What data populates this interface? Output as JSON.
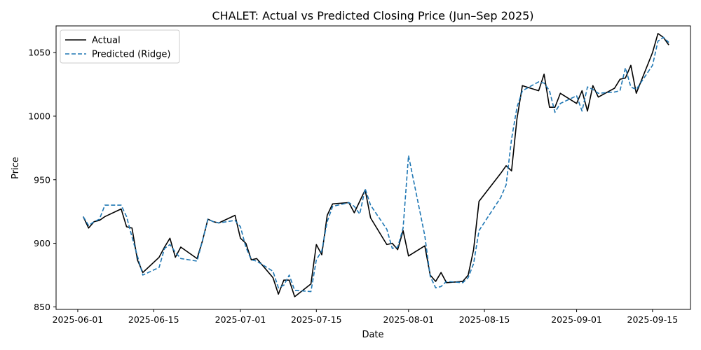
{
  "chart_data": {
    "type": "line",
    "title": "CHALET: Actual vs Predicted Closing Price (Jun–Sep 2025)",
    "xlabel": "Date",
    "ylabel": "Price",
    "x_tick_labels": [
      "2025-06-01",
      "2025-06-15",
      "2025-07-01",
      "2025-07-15",
      "2025-08-01",
      "2025-08-15",
      "2025-09-01",
      "2025-09-15"
    ],
    "y_ticks": [
      850,
      900,
      950,
      1000,
      1050
    ],
    "xlim": [
      "2025-05-28",
      "2025-09-22"
    ],
    "ylim": [
      848,
      1071
    ],
    "grid": false,
    "legend_position": "top-left",
    "series": [
      {
        "name": "Actual",
        "color": "#000000",
        "style": "solid",
        "points": [
          [
            "2025-06-02",
            921
          ],
          [
            "2025-06-03",
            912
          ],
          [
            "2025-06-04",
            917
          ],
          [
            "2025-06-05",
            918
          ],
          [
            "2025-06-06",
            921
          ],
          [
            "2025-06-09",
            927
          ],
          [
            "2025-06-10",
            913
          ],
          [
            "2025-06-11",
            912
          ],
          [
            "2025-06-12",
            887
          ],
          [
            "2025-06-13",
            877
          ],
          [
            "2025-06-16",
            889
          ],
          [
            "2025-06-17",
            897
          ],
          [
            "2025-06-18",
            904
          ],
          [
            "2025-06-19",
            889
          ],
          [
            "2025-06-20",
            897
          ],
          [
            "2025-06-23",
            888
          ],
          [
            "2025-06-24",
            902
          ],
          [
            "2025-06-25",
            919
          ],
          [
            "2025-06-26",
            917
          ],
          [
            "2025-06-27",
            916
          ],
          [
            "2025-06-30",
            922
          ],
          [
            "2025-07-01",
            904
          ],
          [
            "2025-07-02",
            900
          ],
          [
            "2025-07-03",
            887
          ],
          [
            "2025-07-04",
            888
          ],
          [
            "2025-07-07",
            873
          ],
          [
            "2025-07-08",
            860
          ],
          [
            "2025-07-09",
            871
          ],
          [
            "2025-07-10",
            871
          ],
          [
            "2025-07-11",
            858
          ],
          [
            "2025-07-14",
            868
          ],
          [
            "2025-07-15",
            899
          ],
          [
            "2025-07-16",
            891
          ],
          [
            "2025-07-17",
            922
          ],
          [
            "2025-07-18",
            931
          ],
          [
            "2025-07-21",
            932
          ],
          [
            "2025-07-22",
            924
          ],
          [
            "2025-07-23",
            933
          ],
          [
            "2025-07-24",
            942
          ],
          [
            "2025-07-25",
            920
          ],
          [
            "2025-07-28",
            899
          ],
          [
            "2025-07-29",
            900
          ],
          [
            "2025-07-30",
            895
          ],
          [
            "2025-07-31",
            910
          ],
          [
            "2025-08-01",
            890
          ],
          [
            "2025-08-04",
            898
          ],
          [
            "2025-08-05",
            875
          ],
          [
            "2025-08-06",
            870
          ],
          [
            "2025-08-07",
            877
          ],
          [
            "2025-08-08",
            869
          ],
          [
            "2025-08-11",
            870
          ],
          [
            "2025-08-12",
            875
          ],
          [
            "2025-08-13",
            895
          ],
          [
            "2025-08-14",
            933
          ],
          [
            "2025-08-18",
            955
          ],
          [
            "2025-08-19",
            961
          ],
          [
            "2025-08-20",
            957
          ],
          [
            "2025-08-21",
            998
          ],
          [
            "2025-08-22",
            1024
          ],
          [
            "2025-08-25",
            1020
          ],
          [
            "2025-08-26",
            1033
          ],
          [
            "2025-08-27",
            1007
          ],
          [
            "2025-08-28",
            1007
          ],
          [
            "2025-08-29",
            1018
          ],
          [
            "2025-09-01",
            1010
          ],
          [
            "2025-09-02",
            1020
          ],
          [
            "2025-09-03",
            1004
          ],
          [
            "2025-09-04",
            1024
          ],
          [
            "2025-09-05",
            1015
          ],
          [
            "2025-09-08",
            1022
          ],
          [
            "2025-09-09",
            1029
          ],
          [
            "2025-09-10",
            1030
          ],
          [
            "2025-09-11",
            1040
          ],
          [
            "2025-09-12",
            1018
          ],
          [
            "2025-09-15",
            1050
          ],
          [
            "2025-09-16",
            1065
          ],
          [
            "2025-09-17",
            1062
          ],
          [
            "2025-09-18",
            1056
          ]
        ]
      },
      {
        "name": "Predicted (Ridge)",
        "color": "#1f77b4",
        "style": "dashed",
        "points": [
          [
            "2025-06-02",
            921
          ],
          [
            "2025-06-03",
            914
          ],
          [
            "2025-06-04",
            917
          ],
          [
            "2025-06-05",
            919
          ],
          [
            "2025-06-06",
            930
          ],
          [
            "2025-06-09",
            930
          ],
          [
            "2025-06-10",
            921
          ],
          [
            "2025-06-11",
            905
          ],
          [
            "2025-06-12",
            890
          ],
          [
            "2025-06-13",
            875
          ],
          [
            "2025-06-16",
            881
          ],
          [
            "2025-06-17",
            896
          ],
          [
            "2025-06-18",
            899
          ],
          [
            "2025-06-19",
            893
          ],
          [
            "2025-06-20",
            888
          ],
          [
            "2025-06-23",
            886
          ],
          [
            "2025-06-24",
            902
          ],
          [
            "2025-06-25",
            919
          ],
          [
            "2025-06-26",
            917
          ],
          [
            "2025-06-27",
            916
          ],
          [
            "2025-06-30",
            918
          ],
          [
            "2025-07-01",
            913
          ],
          [
            "2025-07-02",
            897
          ],
          [
            "2025-07-03",
            887
          ],
          [
            "2025-07-04",
            886
          ],
          [
            "2025-07-07",
            878
          ],
          [
            "2025-07-08",
            865
          ],
          [
            "2025-07-09",
            867
          ],
          [
            "2025-07-10",
            875
          ],
          [
            "2025-07-11",
            863
          ],
          [
            "2025-07-14",
            862
          ],
          [
            "2025-07-15",
            887
          ],
          [
            "2025-07-16",
            894
          ],
          [
            "2025-07-17",
            917
          ],
          [
            "2025-07-18",
            929
          ],
          [
            "2025-07-21",
            932
          ],
          [
            "2025-07-22",
            929
          ],
          [
            "2025-07-23",
            923
          ],
          [
            "2025-07-24",
            943
          ],
          [
            "2025-07-25",
            930
          ],
          [
            "2025-07-28",
            911
          ],
          [
            "2025-07-29",
            896
          ],
          [
            "2025-07-30",
            897
          ],
          [
            "2025-07-31",
            912
          ],
          [
            "2025-08-01",
            969
          ],
          [
            "2025-08-04",
            906
          ],
          [
            "2025-08-05",
            874
          ],
          [
            "2025-08-06",
            865
          ],
          [
            "2025-08-07",
            866
          ],
          [
            "2025-08-08",
            870
          ],
          [
            "2025-08-11",
            869
          ],
          [
            "2025-08-12",
            873
          ],
          [
            "2025-08-13",
            884
          ],
          [
            "2025-08-14",
            910
          ],
          [
            "2025-08-18",
            936
          ],
          [
            "2025-08-19",
            946
          ],
          [
            "2025-08-20",
            982
          ],
          [
            "2025-08-21",
            1007
          ],
          [
            "2025-08-22",
            1020
          ],
          [
            "2025-08-25",
            1027
          ],
          [
            "2025-08-26",
            1026
          ],
          [
            "2025-08-27",
            1020
          ],
          [
            "2025-08-28",
            1003
          ],
          [
            "2025-08-29",
            1010
          ],
          [
            "2025-09-01",
            1016
          ],
          [
            "2025-09-02",
            1004
          ],
          [
            "2025-09-03",
            1023
          ],
          [
            "2025-09-04",
            1021
          ],
          [
            "2025-09-05",
            1018
          ],
          [
            "2025-09-08",
            1019
          ],
          [
            "2025-09-09",
            1020
          ],
          [
            "2025-09-10",
            1038
          ],
          [
            "2025-09-11",
            1023
          ],
          [
            "2025-09-12",
            1021
          ],
          [
            "2025-09-15",
            1040
          ],
          [
            "2025-09-16",
            1059
          ],
          [
            "2025-09-17",
            1062
          ],
          [
            "2025-09-18",
            1058
          ]
        ]
      }
    ]
  }
}
